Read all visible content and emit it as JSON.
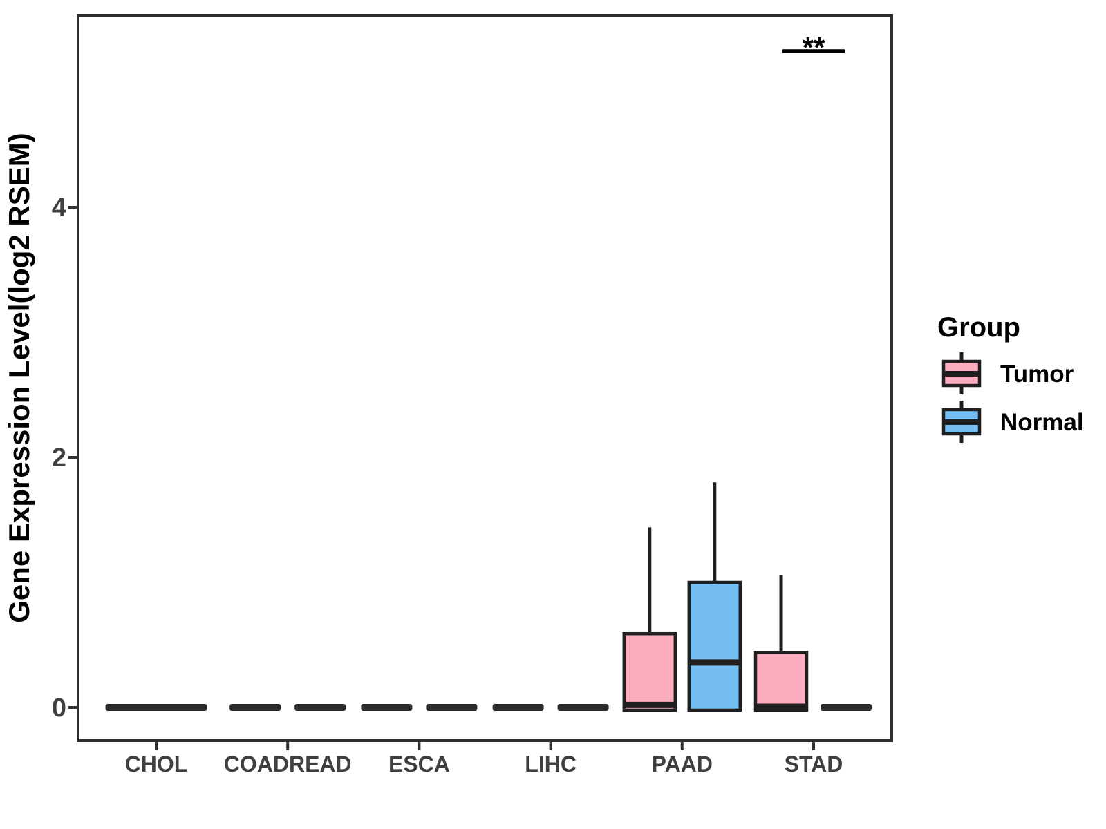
{
  "colors": {
    "tumor_fill": "#FBACBF",
    "normal_fill": "#74BEF4",
    "box_border": "#1F1F1F",
    "panel_border": "#2E2E2E",
    "tick_text": "#3F3F3F",
    "title_text": "#000000",
    "flat_dash": "#2B2B2B"
  },
  "legend": {
    "title": "Group",
    "items": [
      {
        "label": "Tumor",
        "color": "#FBACBF"
      },
      {
        "label": "Normal",
        "color": "#74BEF4"
      }
    ]
  },
  "chart_data": {
    "type": "boxplot",
    "title": "",
    "xlabel": "",
    "ylabel": "Gene Expression Level(log2 RSEM)",
    "categories": [
      "CHOL",
      "COADREAD",
      "ESCA",
      "LIHC",
      "PAAD",
      "STAD"
    ],
    "y_ticks": [
      "0",
      "2",
      "4"
    ],
    "y_tick_values": [
      0,
      2,
      4
    ],
    "ylim": [
      -0.27,
      5.54
    ],
    "grid": false,
    "legend_position": "right",
    "series": [
      {
        "name": "Tumor",
        "color": "#FBACBF",
        "boxes": [
          {
            "category": "CHOL",
            "low": 0,
            "q1": 0,
            "median": 0,
            "q3": 0,
            "high": 0,
            "full_width": true
          },
          {
            "category": "COADREAD",
            "low": 0,
            "q1": 0,
            "median": 0,
            "q3": 0,
            "high": 0
          },
          {
            "category": "ESCA",
            "low": 0,
            "q1": 0,
            "median": 0,
            "q3": 0,
            "high": 0
          },
          {
            "category": "LIHC",
            "low": 0,
            "q1": 0,
            "median": 0,
            "q3": 0,
            "high": 0
          },
          {
            "category": "PAAD",
            "low": 0,
            "q1": 0,
            "median": 0.02,
            "q3": 0.59,
            "high": 1.44
          },
          {
            "category": "STAD",
            "low": 0,
            "q1": 0,
            "median": 0,
            "q3": 0.44,
            "high": 1.06
          }
        ]
      },
      {
        "name": "Normal",
        "color": "#74BEF4",
        "boxes": [
          null,
          {
            "category": "COADREAD",
            "low": 0,
            "q1": 0,
            "median": 0,
            "q3": 0,
            "high": 0
          },
          {
            "category": "ESCA",
            "low": 0,
            "q1": 0,
            "median": 0,
            "q3": 0,
            "high": 0
          },
          {
            "category": "LIHC",
            "low": 0,
            "q1": 0,
            "median": 0,
            "q3": 0,
            "high": 0
          },
          {
            "category": "PAAD",
            "low": 0,
            "q1": 0,
            "median": 0.36,
            "q3": 1.0,
            "high": 1.8
          },
          {
            "category": "STAD",
            "low": 0,
            "q1": 0,
            "median": 0,
            "q3": 0,
            "high": 0
          }
        ]
      }
    ],
    "annotations": [
      {
        "text": "**",
        "category": "STAD",
        "y_line": 5.25,
        "span": "tumor-to-normal"
      }
    ]
  }
}
